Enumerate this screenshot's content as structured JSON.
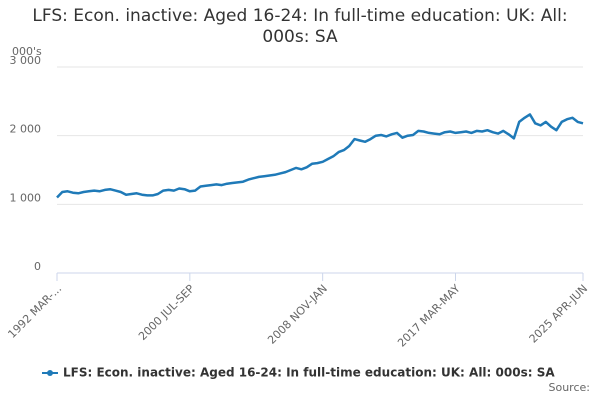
{
  "chart_data": {
    "type": "line",
    "title": "LFS: Econ. inactive: Aged 16-24: In full-time education: UK: All: 000s: SA",
    "y_label": "000's",
    "source": "Source:",
    "categories": [
      "1992 MAR-...",
      null,
      null,
      null,
      null,
      null,
      null,
      null,
      null,
      null,
      null,
      null,
      null,
      null,
      null,
      null,
      null,
      null,
      null,
      null,
      null,
      null,
      null,
      null,
      null,
      "2000 JUL-SEP",
      null,
      null,
      null,
      null,
      null,
      null,
      null,
      null,
      null,
      null,
      null,
      null,
      null,
      null,
      null,
      null,
      null,
      null,
      null,
      null,
      null,
      null,
      null,
      null,
      "2008 NOV-JAN",
      null,
      null,
      null,
      null,
      null,
      null,
      null,
      null,
      null,
      null,
      null,
      null,
      null,
      null,
      null,
      null,
      null,
      null,
      null,
      null,
      null,
      null,
      null,
      null,
      "2017 MAR-MAY",
      null,
      null,
      null,
      null,
      null,
      null,
      null,
      null,
      null,
      null,
      null,
      null,
      null,
      null,
      null,
      null,
      null,
      null,
      null,
      null,
      null,
      null,
      null,
      "2025 APR-JUN"
    ],
    "series": [
      {
        "name": "LFS: Econ. inactive: Aged 16-24: In full-time education: UK: All: 000s: SA",
        "color": "#1f7ab8",
        "values": [
          1100,
          1180,
          1190,
          1170,
          1160,
          1180,
          1190,
          1200,
          1190,
          1210,
          1220,
          1200,
          1180,
          1140,
          1150,
          1160,
          1140,
          1130,
          1130,
          1150,
          1200,
          1210,
          1200,
          1230,
          1220,
          1190,
          1200,
          1260,
          1270,
          1280,
          1290,
          1280,
          1300,
          1310,
          1320,
          1330,
          1360,
          1380,
          1400,
          1410,
          1420,
          1430,
          1450,
          1470,
          1500,
          1530,
          1510,
          1540,
          1590,
          1600,
          1620,
          1660,
          1700,
          1760,
          1790,
          1850,
          1950,
          1930,
          1910,
          1950,
          2000,
          2010,
          1990,
          2020,
          2040,
          1970,
          2000,
          2010,
          2070,
          2060,
          2040,
          2030,
          2020,
          2050,
          2060,
          2040,
          2050,
          2060,
          2040,
          2070,
          2060,
          2080,
          2050,
          2030,
          2070,
          2020,
          1960,
          2200,
          2260,
          2310,
          2180,
          2150,
          2200,
          2130,
          2080,
          2200,
          2240,
          2260,
          2200,
          2180
        ]
      }
    ],
    "ylim": [
      0,
      3000
    ],
    "yticks": [
      0,
      {
        "value": 1000,
        "label": "1 000"
      },
      {
        "value": 2000,
        "label": "2 000"
      },
      {
        "value": 3000,
        "label": "3 000"
      }
    ],
    "grid": true
  }
}
